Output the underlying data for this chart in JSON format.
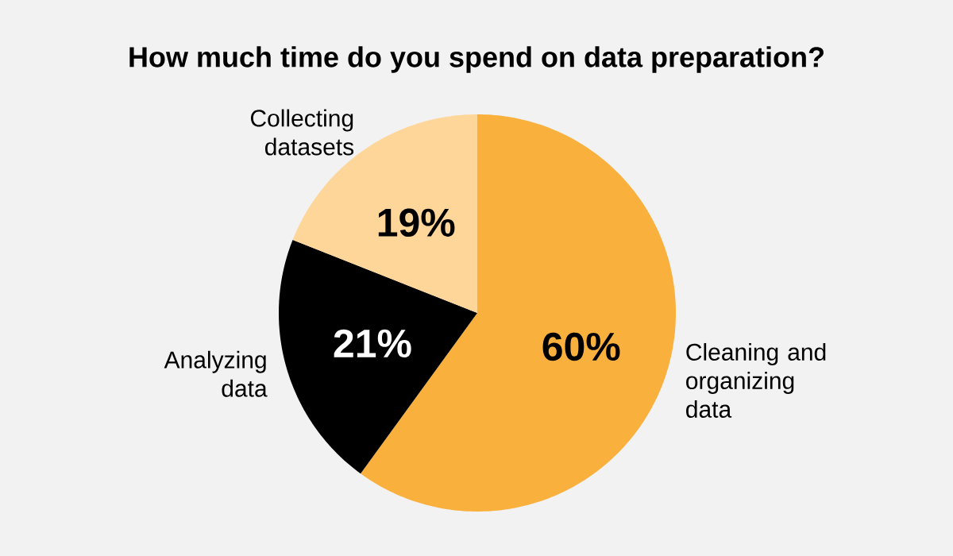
{
  "chart_data": {
    "type": "pie",
    "title": "How much time do you spend on data preparation?",
    "categories": [
      "Cleaning and organizing data",
      "Analyzing data",
      "Collecting datasets"
    ],
    "values": [
      60,
      21,
      19
    ],
    "colors": [
      "#f9b03d",
      "#000000",
      "#ffd699"
    ],
    "value_labels": [
      "60%",
      "21%",
      "19%"
    ]
  }
}
